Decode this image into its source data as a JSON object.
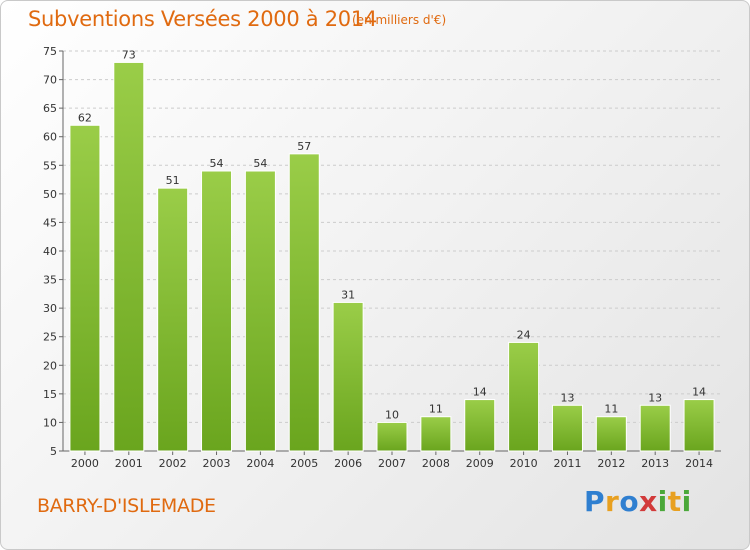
{
  "header": {
    "title": "Subventions Versées 2000 à 2014",
    "unit_note": "(en milliers d'€)"
  },
  "footer": {
    "commune": "BARRY-D'ISLEMADE",
    "logo_letters": [
      "P",
      "r",
      "o",
      "x",
      "i",
      "t",
      "i"
    ]
  },
  "colors": {
    "bar_top": "#9acd48",
    "bar_bottom": "#6aa51e",
    "title": "#e06a10",
    "grid": "#cccccc"
  },
  "chart_data": {
    "type": "bar",
    "title": "Subventions Versées 2000 à 2014",
    "subtitle": "(en milliers d'€)",
    "categories": [
      "2000",
      "2001",
      "2002",
      "2003",
      "2004",
      "2005",
      "2006",
      "2007",
      "2008",
      "2009",
      "2010",
      "2011",
      "2012",
      "2013",
      "2014"
    ],
    "values": [
      62,
      73,
      51,
      54,
      54,
      57,
      31,
      10,
      11,
      14,
      24,
      13,
      11,
      13,
      14
    ],
    "ylim": [
      5,
      75
    ],
    "yticks": [
      5,
      10,
      15,
      20,
      25,
      30,
      35,
      40,
      45,
      50,
      55,
      60,
      65,
      70,
      75
    ],
    "grid": true,
    "data_labels": true
  }
}
